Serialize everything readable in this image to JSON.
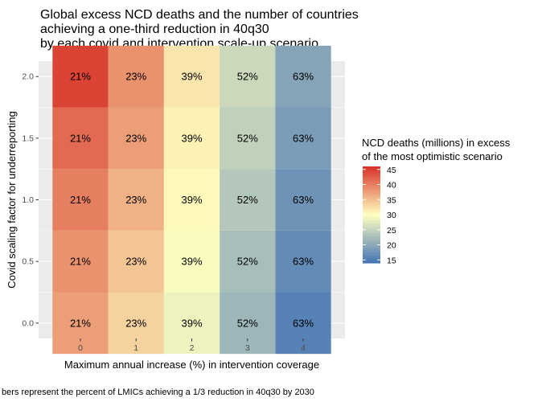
{
  "chart_data": {
    "type": "heatmap",
    "title_lines": [
      "Global excess NCD deaths and the number of countries",
      "achieving a one-third reduction in 40q30",
      "by each covid and intervention scale-up scenario"
    ],
    "xlabel": "Maximum annual increase (%) in intervention coverage",
    "ylabel": "Covid scaling factor for underreporting",
    "x": [
      0,
      1,
      2,
      3,
      4
    ],
    "y": [
      0.0,
      0.5,
      1.0,
      1.5,
      2.0
    ],
    "x_ticks": [
      "0",
      "1",
      "2",
      "3",
      "4"
    ],
    "y_ticks": [
      "0.0",
      "0.5",
      "1.0",
      "1.5",
      "2.0"
    ],
    "xlim": [
      -0.75,
      4.75
    ],
    "ylim": [
      -0.125,
      2.125
    ],
    "values": [
      [
        37.5,
        33.5,
        28.5,
        21.5,
        15.5
      ],
      [
        38.5,
        34.5,
        29.5,
        22.5,
        16.5
      ],
      [
        40.0,
        36.0,
        30.5,
        23.5,
        17.5
      ],
      [
        41.5,
        37.5,
        31.0,
        24.5,
        18.5
      ],
      [
        44.5,
        38.5,
        32.0,
        25.5,
        19.5
      ]
    ],
    "cell_labels": [
      [
        "21%",
        "23%",
        "39%",
        "52%",
        "63%"
      ],
      [
        "21%",
        "23%",
        "39%",
        "52%",
        "63%"
      ],
      [
        "21%",
        "23%",
        "39%",
        "52%",
        "63%"
      ],
      [
        "21%",
        "23%",
        "39%",
        "52%",
        "63%"
      ],
      [
        "21%",
        "23%",
        "39%",
        "52%",
        "63%"
      ]
    ],
    "legend": {
      "title_lines": [
        "NCD deaths (millions) in excess",
        "of the most optimistic scenario"
      ],
      "ticks": [
        45,
        40,
        35,
        30,
        25,
        20,
        15
      ],
      "range": [
        14,
        46
      ],
      "colors": {
        "low": "#4575b4",
        "mid": "#ffffbf",
        "high": "#d73027"
      },
      "midpoint": 30
    },
    "caption": "bers represent the percent of LMICs achieving a 1/3 reduction in 40q30 by 2030",
    "grid": true,
    "panel_background": "#ebebeb"
  }
}
